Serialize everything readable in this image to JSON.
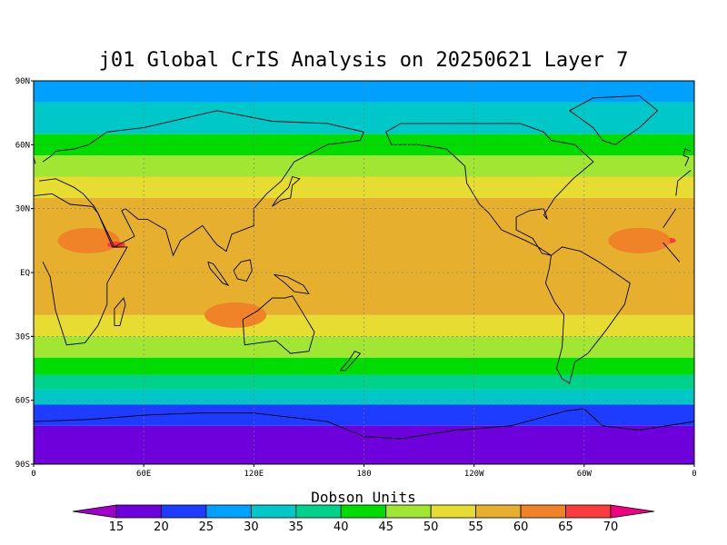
{
  "title": "j01 Global CrIS Analysis on 20250621 Layer 7",
  "colorbar": {
    "title": "Dobson Units",
    "ticks": [
      "15",
      "20",
      "25",
      "30",
      "35",
      "40",
      "45",
      "50",
      "55",
      "60",
      "65",
      "70"
    ],
    "colors": [
      "#a000c8",
      "#6e00dc",
      "#1e3cff",
      "#00a0ff",
      "#00c8c8",
      "#00d28c",
      "#00dc00",
      "#a0e632",
      "#e6dc32",
      "#e6af2d",
      "#f08228",
      "#fa3c3c",
      "#f00082"
    ]
  },
  "axes": {
    "lat_labels": [
      "90N",
      "60N",
      "30N",
      "EQ",
      "30S",
      "60S",
      "90S"
    ],
    "lon_labels": [
      "0",
      "60E",
      "120E",
      "180",
      "120W",
      "60W",
      "0"
    ]
  },
  "map_data": {
    "units": "Dobson Units",
    "lon_range": [
      0,
      360
    ],
    "lat_range": [
      -90,
      90
    ],
    "bands": [
      {
        "lat": [
          80,
          90
        ],
        "value": 27
      },
      {
        "lat": [
          65,
          80
        ],
        "value": 32
      },
      {
        "lat": [
          55,
          65
        ],
        "value": 40
      },
      {
        "lat": [
          45,
          55
        ],
        "value": 45
      },
      {
        "lat": [
          35,
          45
        ],
        "value": 50
      },
      {
        "lat": [
          -20,
          35
        ],
        "value": 55
      },
      {
        "lat": [
          -30,
          -20
        ],
        "value": 50
      },
      {
        "lat": [
          -40,
          -30
        ],
        "value": 45
      },
      {
        "lat": [
          -48,
          -40
        ],
        "value": 40
      },
      {
        "lat": [
          -55,
          -48
        ],
        "value": 35
      },
      {
        "lat": [
          -62,
          -55
        ],
        "value": 30
      },
      {
        "lat": [
          -72,
          -62
        ],
        "value": 22
      },
      {
        "lat": [
          -90,
          -72
        ],
        "value": 17
      }
    ],
    "highs": [
      {
        "lon": 30,
        "lat": 15,
        "value": 62
      },
      {
        "lon": 45,
        "lat": 13,
        "value": 67
      },
      {
        "lon": 345,
        "lat": 15,
        "value": 67
      },
      {
        "lon": 330,
        "lat": 15,
        "value": 62
      },
      {
        "lon": 110,
        "lat": -20,
        "value": 60
      }
    ]
  }
}
